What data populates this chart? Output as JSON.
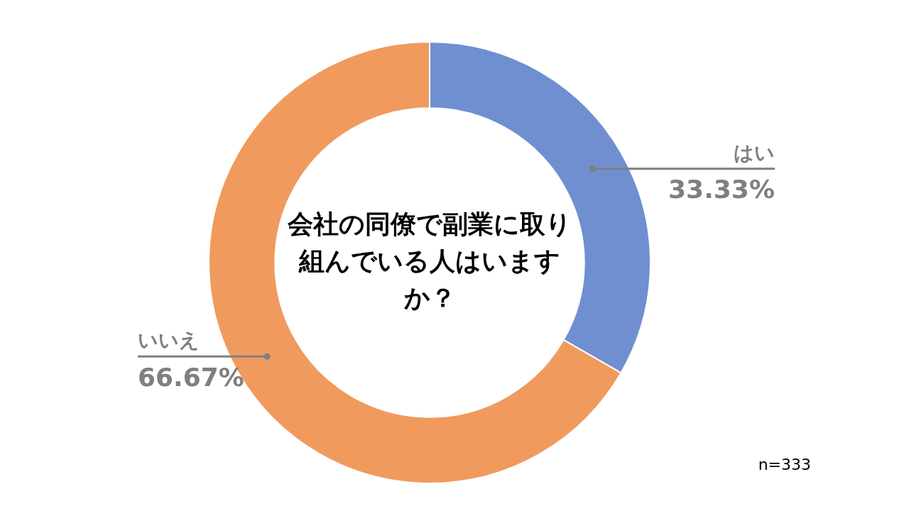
{
  "chart_data": {
    "type": "donut",
    "title": "会社の同僚で副業に取り組んでいる人はいますか？",
    "categories": [
      "はい",
      "いいえ"
    ],
    "values": [
      33.33,
      66.67
    ],
    "colors": [
      "#6f8fd0",
      "#f09a5e"
    ],
    "value_labels": [
      "33.33%",
      "66.67%"
    ],
    "legend": false,
    "annotations": [
      "n=333"
    ]
  }
}
